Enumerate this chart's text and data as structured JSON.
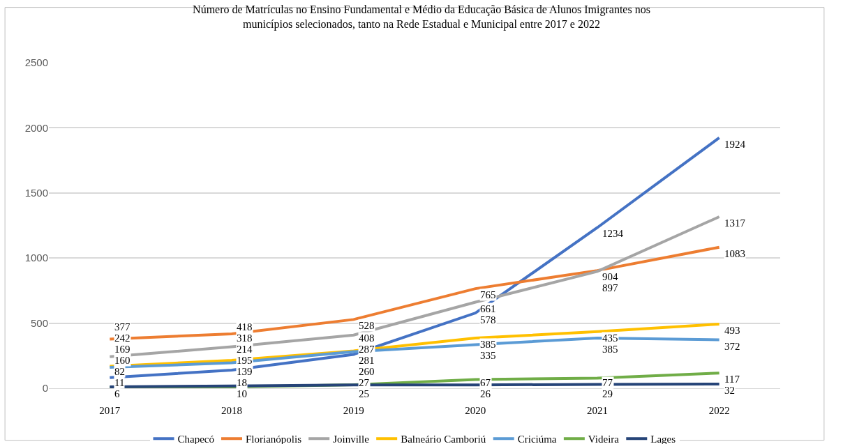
{
  "chart_data": {
    "type": "line",
    "title": "Número de Matrículas no Ensino Fundamental e Médio da Educação Básica de Alunos Imigrantes nos\nmunicípios selecionados, tanto na Rede Estadual e Municipal entre 2017 e 2022",
    "categories": [
      "2017",
      "2018",
      "2019",
      "2020",
      "2021",
      "2022"
    ],
    "series": [
      {
        "name": "Chapecó",
        "color": "#4472c4",
        "values": [
          82,
          139,
          260,
          578,
          1234,
          1924
        ]
      },
      {
        "name": "Florianópolis",
        "color": "#ed7d31",
        "values": [
          377,
          418,
          528,
          765,
          904,
          1083
        ]
      },
      {
        "name": "Joinville",
        "color": "#a5a5a5",
        "values": [
          242,
          318,
          408,
          661,
          897,
          1317
        ]
      },
      {
        "name": "Balneário Camboriú",
        "color": "#ffc000",
        "values": [
          169,
          214,
          287,
          385,
          435,
          493
        ]
      },
      {
        "name": "Criciúma",
        "color": "#5b9bd5",
        "values": [
          160,
          195,
          281,
          335,
          385,
          372
        ]
      },
      {
        "name": "Videira",
        "color": "#70ad47",
        "values": [
          6,
          10,
          27,
          67,
          77,
          117
        ]
      },
      {
        "name": "Lages",
        "color": "#264478",
        "values": [
          11,
          18,
          25,
          26,
          29,
          32
        ]
      }
    ],
    "ylim": [
      0,
      2500
    ],
    "yticks": [
      0,
      500,
      1000,
      1500,
      2000,
      2500
    ],
    "grid": "y",
    "legend": "bottom",
    "data_labels": true,
    "marker": "none",
    "line_style": "solid"
  }
}
